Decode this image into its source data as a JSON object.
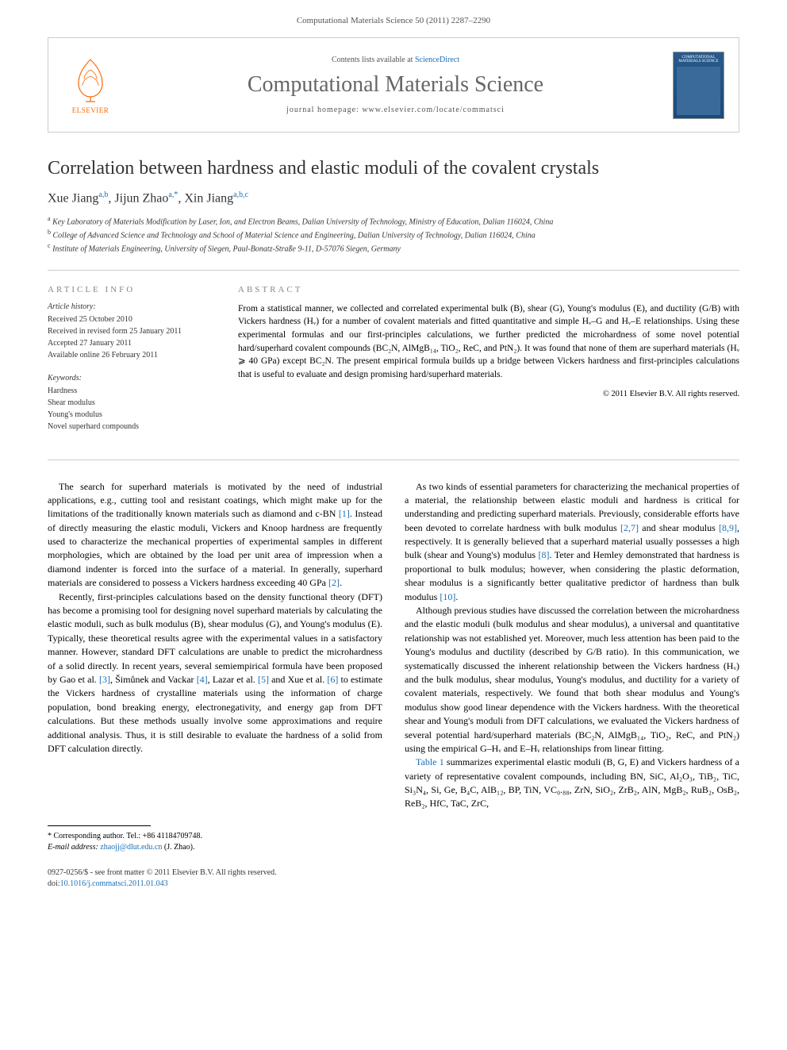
{
  "header": {
    "citation": "Computational Materials Science 50 (2011) 2287–2290"
  },
  "journal_bar": {
    "publisher": "ELSEVIER",
    "contents_prefix": "Contents lists available at ",
    "contents_link": "ScienceDirect",
    "journal_title": "Computational Materials Science",
    "homepage_prefix": "journal homepage: ",
    "homepage_url": "www.elsevier.com/locate/commatsci",
    "cover_label": "COMPUTATIONAL MATERIALS SCIENCE"
  },
  "article": {
    "title": "Correlation between hardness and elastic moduli of the covalent crystals",
    "authors_html": "Xue Jiang<sup>a,b</sup>, Jijun Zhao<sup>a,*</sup>, Xin Jiang<sup>a,b,c</sup>",
    "affiliations": [
      {
        "sup": "a",
        "text": "Key Laboratory of Materials Modification by Laser, Ion, and Electron Beams, Dalian University of Technology, Ministry of Education, Dalian 116024, China"
      },
      {
        "sup": "b",
        "text": "College of Advanced Science and Technology and School of Material Science and Engineering, Dalian University of Technology, Dalian 116024, China"
      },
      {
        "sup": "c",
        "text": "Institute of Materials Engineering, University of Siegen, Paul-Bonatz-Straße 9-11, D-57076 Siegen, Germany"
      }
    ]
  },
  "info": {
    "heading": "ARTICLE INFO",
    "history_heading": "Article history:",
    "history": [
      "Received 25 October 2010",
      "Received in revised form 25 January 2011",
      "Accepted 27 January 2011",
      "Available online 26 February 2011"
    ],
    "keywords_heading": "Keywords:",
    "keywords": [
      "Hardness",
      "Shear modulus",
      "Young's modulus",
      "Novel superhard compounds"
    ]
  },
  "abstract": {
    "heading": "ABSTRACT",
    "text": "From a statistical manner, we collected and correlated experimental bulk (B), shear (G), Young's modulus (E), and ductility (G/B) with Vickers hardness (Hᵥ) for a number of covalent materials and fitted quantitative and simple Hᵥ–G and Hᵥ–E relationships. Using these experimental formulas and our first-principles calculations, we further predicted the microhardness of some novel potential hard/superhard covalent compounds (BC₂N, AlMgB₁₄, TiO₂, ReC, and PtN₂). It was found that none of them are superhard materials (Hᵥ ⩾ 40 GPa) except BC₂N. The present empirical formula builds up a bridge between Vickers hardness and first-principles calculations that is useful to evaluate and design promising hard/superhard materials.",
    "copyright": "© 2011 Elsevier B.V. All rights reserved."
  },
  "body": {
    "left": [
      "The search for superhard materials is motivated by the need of industrial applications, e.g., cutting tool and resistant coatings, which might make up for the limitations of the traditionally known materials such as diamond and c-BN [1]. Instead of directly measuring the elastic moduli, Vickers and Knoop hardness are frequently used to characterize the mechanical properties of experimental samples in different morphologies, which are obtained by the load per unit area of impression when a diamond indenter is forced into the surface of a material. In generally, superhard materials are considered to possess a Vickers hardness exceeding 40 GPa [2].",
      "Recently, first-principles calculations based on the density functional theory (DFT) has become a promising tool for designing novel superhard materials by calculating the elastic moduli, such as bulk modulus (B), shear modulus (G), and Young's modulus (E). Typically, these theoretical results agree with the experimental values in a satisfactory manner. However, standard DFT calculations are unable to predict the microhardness of a solid directly. In recent years, several semiempirical formula have been proposed by Gao et al. [3], Šimůnek and Vackar [4], Lazar et al. [5] and Xue et al. [6] to estimate the Vickers hardness of crystalline materials using the information of charge population, bond breaking energy, electronegativity, and energy gap from DFT calculations. But these methods usually involve some approximations and require additional analysis. Thus, it is still desirable to evaluate the hardness of a solid from DFT calculation directly."
    ],
    "right": [
      "As two kinds of essential parameters for characterizing the mechanical properties of a material, the relationship between elastic moduli and hardness is critical for understanding and predicting superhard materials. Previously, considerable efforts have been devoted to correlate hardness with bulk modulus [2,7] and shear modulus [8,9], respectively. It is generally believed that a superhard material usually possesses a high bulk (shear and Young's) modulus [8]. Teter and Hemley demonstrated that hardness is proportional to bulk modulus; however, when considering the plastic deformation, shear modulus is a significantly better qualitative predictor of hardness than bulk modulus [10].",
      "Although previous studies have discussed the correlation between the microhardness and the elastic moduli (bulk modulus and shear modulus), a universal and quantitative relationship was not established yet. Moreover, much less attention has been paid to the Young's modulus and ductility (described by G/B ratio). In this communication, we systematically discussed the inherent relationship between the Vickers hardness (Hᵥ) and the bulk modulus, shear modulus, Young's modulus, and ductility for a variety of covalent materials, respectively. We found that both shear modulus and Young's modulus show good linear dependence with the Vickers hardness. With the theoretical shear and Young's moduli from DFT calculations, we evaluated the Vickers hardness of several potential hard/superhard materials (BC₂N, AlMgB₁₄, TiO₂, ReC, and PtN₂) using the empirical G–Hᵥ and E–Hᵥ relationships from linear fitting.",
      "Table 1 summarizes experimental elastic moduli (B, G, E) and Vickers hardness of a variety of representative covalent compounds, including BN, SiC, Al₂O₃, TiB₂, TiC, Si₃N₄, Si, Ge, B₄C, AlB₁₂, BP, TiN, VC₀.₈₈, ZrN, SiO₂, ZrB₂, AlN, MgB₂, RuB₂, OsB₂, ReB₂, HfC, TaC, ZrC,"
    ]
  },
  "corresponding": {
    "line1_prefix": "* Corresponding author. Tel.: ",
    "tel": "+86 41184709748.",
    "line2_prefix": "E-mail address: ",
    "email": "zhaojj@dlut.edu.cn",
    "line2_suffix": " (J. Zhao)."
  },
  "footer": {
    "issn": "0927-0256/$ - see front matter © 2011 Elsevier B.V. All rights reserved.",
    "doi_prefix": "doi:",
    "doi": "10.1016/j.commatsci.2011.01.043"
  },
  "colors": {
    "link": "#1a6fb5",
    "publisher_orange": "#ff6600",
    "heading_gray": "#888888",
    "body_text": "#000000",
    "border": "#cccccc"
  }
}
